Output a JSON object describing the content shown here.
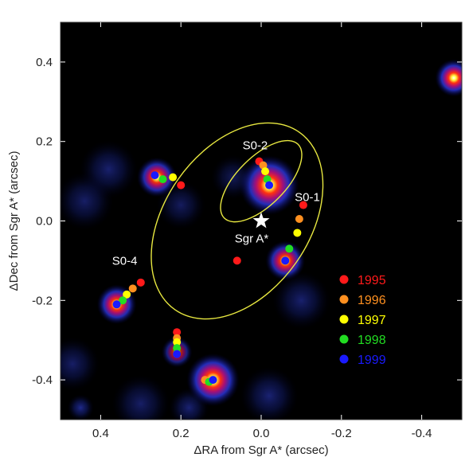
{
  "chart_data": {
    "type": "scatter",
    "xlabel": "ΔRA from Sgr A* (arcsec)",
    "ylabel": "ΔDec from Sgr A* (arcsec)",
    "xlim": [
      0.5,
      -0.5
    ],
    "ylim": [
      -0.5,
      0.5
    ],
    "x_ticks": [
      0.4,
      0.2,
      0.0,
      -0.2,
      -0.4
    ],
    "x_tick_labels": [
      "0.4",
      "0.2",
      "0.0",
      "-0.2",
      "-0.4"
    ],
    "y_ticks": [
      0.4,
      0.2,
      0.0,
      -0.2,
      -0.4
    ],
    "y_tick_labels": [
      "0.4",
      "0.2",
      "0.0",
      "-0.2",
      "-0.4"
    ],
    "background": "#000000",
    "legend_position": "lower-right",
    "legend": [
      {
        "label": "1995",
        "color": "#ff1a1a"
      },
      {
        "label": "1996",
        "color": "#ff9020"
      },
      {
        "label": "1997",
        "color": "#ffff00"
      },
      {
        "label": "1998",
        "color": "#22dd22"
      },
      {
        "label": "1999",
        "color": "#1a1aff"
      }
    ],
    "center": {
      "label": "Sgr A*",
      "x": 0.0,
      "y": 0.0,
      "marker": "star",
      "color": "#ffffff"
    },
    "star_labels": [
      {
        "text": "S0-2",
        "x": 0.015,
        "y": 0.18
      },
      {
        "text": "S0-1",
        "x": -0.115,
        "y": 0.05
      },
      {
        "text": "S0-4",
        "x": 0.34,
        "y": -0.11
      }
    ],
    "orbits": [
      {
        "name": "S0-2",
        "cx": 0.0,
        "cy": 0.1,
        "rx": 0.06,
        "ry": 0.13,
        "angle": 45,
        "color": "#e8e840"
      },
      {
        "name": "S0-1",
        "cx": 0.06,
        "cy": 0.0,
        "rx": 0.18,
        "ry": 0.27,
        "angle": 35,
        "color": "#e8e840"
      }
    ],
    "sources": [
      {
        "x": -0.02,
        "y": 0.09,
        "size": 1.35,
        "peak": 1.0
      },
      {
        "x": 0.26,
        "y": 0.11,
        "size": 0.9,
        "peak": 0.78
      },
      {
        "x": 0.36,
        "y": -0.21,
        "size": 0.9,
        "peak": 0.82
      },
      {
        "x": -0.06,
        "y": -0.1,
        "size": 0.9,
        "peak": 0.78
      },
      {
        "x": 0.21,
        "y": -0.33,
        "size": 0.7,
        "peak": 0.55
      },
      {
        "x": 0.12,
        "y": -0.4,
        "size": 1.2,
        "peak": 1.0
      },
      {
        "x": -0.48,
        "y": 0.36,
        "size": 0.85,
        "peak": 0.85
      },
      {
        "x": 0.38,
        "y": 0.13,
        "size": 1.3,
        "peak": 0.28
      },
      {
        "x": 0.44,
        "y": 0.05,
        "size": 1.3,
        "peak": 0.25
      },
      {
        "x": 0.2,
        "y": 0.04,
        "size": 1.1,
        "peak": 0.22
      },
      {
        "x": -0.1,
        "y": -0.2,
        "size": 1.3,
        "peak": 0.28
      },
      {
        "x": -0.02,
        "y": -0.44,
        "size": 1.3,
        "peak": 0.3
      },
      {
        "x": 0.47,
        "y": -0.36,
        "size": 1.2,
        "peak": 0.25
      },
      {
        "x": 0.3,
        "y": -0.46,
        "size": 1.3,
        "peak": 0.25
      },
      {
        "x": 0.45,
        "y": -0.47,
        "size": 0.6,
        "peak": 0.4
      },
      {
        "x": 0.18,
        "y": -0.47,
        "size": 0.9,
        "peak": 0.3
      },
      {
        "x": 0.07,
        "y": 0.11,
        "size": 1.0,
        "peak": 0.2
      }
    ],
    "series": [
      {
        "name": "1995",
        "color": "#ff1a1a",
        "points": [
          {
            "x": 0.005,
            "y": 0.15
          },
          {
            "x": -0.105,
            "y": 0.04
          },
          {
            "x": 0.3,
            "y": -0.155
          },
          {
            "x": 0.2,
            "y": 0.09
          },
          {
            "x": 0.21,
            "y": -0.28
          },
          {
            "x": 0.06,
            "y": -0.1
          }
        ]
      },
      {
        "name": "1996",
        "color": "#ff9020",
        "points": [
          {
            "x": -0.005,
            "y": 0.14
          },
          {
            "x": -0.095,
            "y": 0.005
          },
          {
            "x": 0.32,
            "y": -0.17
          },
          {
            "x": 0.21,
            "y": -0.295
          },
          {
            "x": 0.14,
            "y": -0.4
          }
        ]
      },
      {
        "name": "1997",
        "color": "#ffff00",
        "points": [
          {
            "x": -0.01,
            "y": 0.125
          },
          {
            "x": -0.09,
            "y": -0.03
          },
          {
            "x": 0.335,
            "y": -0.185
          },
          {
            "x": 0.22,
            "y": 0.11
          },
          {
            "x": 0.21,
            "y": -0.305
          }
        ]
      },
      {
        "name": "1998",
        "color": "#22dd22",
        "points": [
          {
            "x": -0.015,
            "y": 0.105
          },
          {
            "x": -0.07,
            "y": -0.07
          },
          {
            "x": 0.345,
            "y": -0.2
          },
          {
            "x": 0.245,
            "y": 0.105
          },
          {
            "x": 0.21,
            "y": -0.32
          },
          {
            "x": 0.13,
            "y": -0.405
          }
        ]
      },
      {
        "name": "1999",
        "color": "#1a1aff",
        "points": [
          {
            "x": -0.02,
            "y": 0.09
          },
          {
            "x": -0.06,
            "y": -0.1
          },
          {
            "x": 0.36,
            "y": -0.21
          },
          {
            "x": 0.265,
            "y": 0.115
          },
          {
            "x": 0.21,
            "y": -0.335
          },
          {
            "x": 0.12,
            "y": -0.4
          }
        ]
      }
    ]
  }
}
